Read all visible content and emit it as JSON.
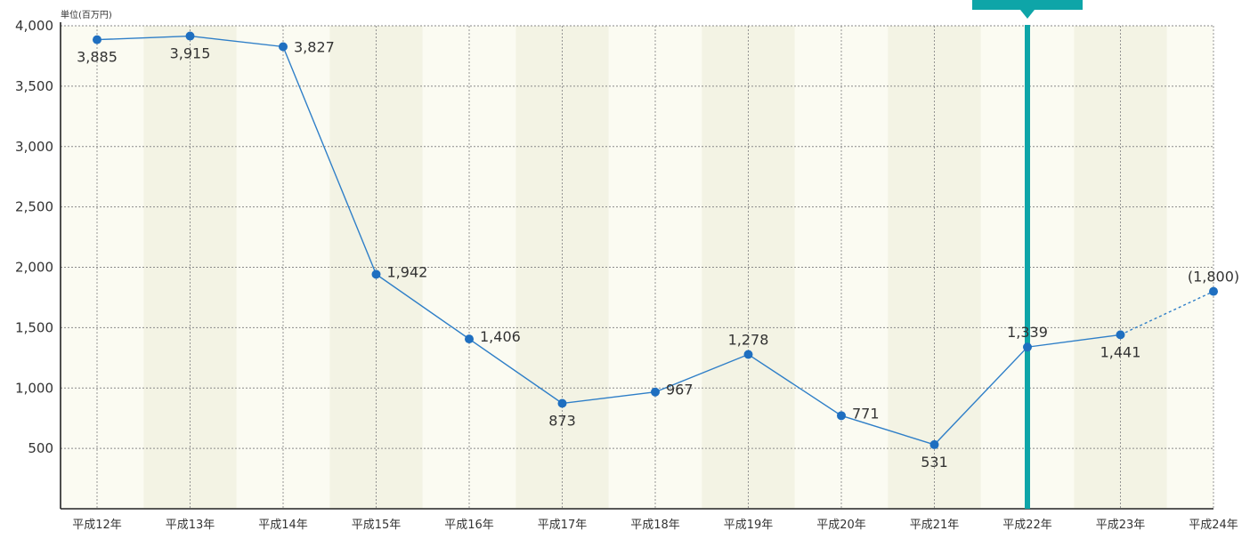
{
  "chart_data": {
    "type": "line",
    "unit_label": "単位(百万円)",
    "categories": [
      "平成12年",
      "平成13年",
      "平成14年",
      "平成15年",
      "平成16年",
      "平成17年",
      "平成18年",
      "平成19年",
      "平成20年",
      "平成21年",
      "平成22年",
      "平成23年",
      "平成24年"
    ],
    "series": [
      {
        "values": [
          3885,
          3915,
          3827,
          1942,
          1406,
          873,
          967,
          1278,
          771,
          531,
          1339,
          1441,
          1800
        ],
        "data_labels": [
          "3,885",
          "3,915",
          "3,827",
          "1,942",
          "1,406",
          "873",
          "967",
          "1,278",
          "771",
          "531",
          "1,339",
          "1,441",
          "(1,800)"
        ],
        "projected_from_index": 11
      }
    ],
    "ylim": [
      0,
      4000
    ],
    "yticks": [
      500,
      1000,
      1500,
      2000,
      2500,
      3000,
      3500,
      4000
    ],
    "ytick_labels": [
      "500",
      "1,000",
      "1,500",
      "2,000",
      "2,500",
      "3,000",
      "3,500",
      "4,000"
    ],
    "grid": true,
    "highlight_category": "平成22年",
    "colors": {
      "line": "#2f7fc8",
      "marker": "#1f6fc0",
      "highlight": "#0ea5a8",
      "band_light": "#fbfbf2",
      "band_dark": "#f3f3e4",
      "grid": "#8a8a8a"
    }
  }
}
